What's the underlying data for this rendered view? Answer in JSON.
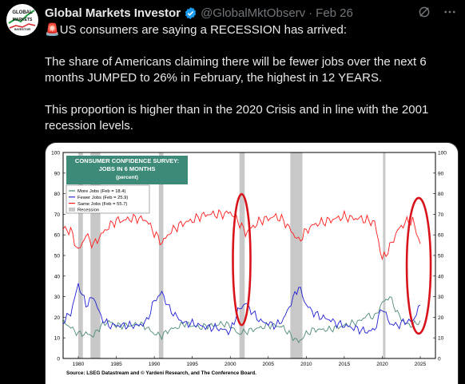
{
  "tweet": {
    "author_name": "Global Markets Investor",
    "handle": "@GlobalMktObserv",
    "date": "Feb 26",
    "avatar_text": [
      "GLOBAL",
      "MARKETS",
      "INVESTOR"
    ],
    "emoji": "🚨",
    "line1": "US consumers are saying a RECESSION has arrived:",
    "para2": "The share of Americans claiming there will be fewer jobs over the next 6 months JUMPED to 26% in February, the highest in 12 YEARS.",
    "para3": "This proportion is higher than in the 2020 Crisis and in line with the 2001 recession levels."
  },
  "icons": {
    "verified": "verified-badge-icon",
    "grok": "grok-icon",
    "more": "more-icon"
  },
  "chart_title": [
    "CONSUMER CONFIDENCE SURVEY:",
    "JOBS IN 6 MONTHS",
    "(percent)"
  ],
  "legend": [
    "More Jobs (Feb = 18.4)",
    "Fewer Jobs (Feb = 25.9)",
    "Same Jobs (Feb = 55.7)",
    "Recession"
  ],
  "source": "Source: LSEG Datastream and © Yardeni Research, and The Conference Board.",
  "colors": {
    "more": "#4e8b78",
    "fewer": "#1f1fd6",
    "same": "#ff1a1a",
    "recession": "#c8c8c8",
    "title_bg": "#3d8a78",
    "circle": "#d8141a"
  },
  "chart_data": {
    "type": "line",
    "title": "CONSUMER CONFIDENCE SURVEY: JOBS IN 6 MONTHS (percent)",
    "x_ticks": [
      "1980",
      "1985",
      "1990",
      "1995",
      "2000",
      "2005",
      "2010",
      "2015",
      "2020",
      "2025"
    ],
    "y_ticks": [
      "0",
      "10",
      "20",
      "30",
      "40",
      "50",
      "60",
      "70",
      "80",
      "90",
      "100"
    ],
    "ylim": [
      0,
      100
    ],
    "xlim": [
      1978,
      2027
    ],
    "recessions": [
      [
        1980.0,
        1980.6
      ],
      [
        1981.6,
        1982.9
      ],
      [
        1990.6,
        1991.2
      ],
      [
        2001.2,
        2001.9
      ],
      [
        2007.9,
        2009.5
      ],
      [
        2020.1,
        2020.4
      ]
    ],
    "series": [
      {
        "name": "More Jobs",
        "x": [
          1978,
          1979,
          1980,
          1981,
          1982,
          1983,
          1984,
          1985,
          1986,
          1987,
          1988,
          1989,
          1990,
          1991,
          1992,
          1993,
          1994,
          1995,
          1996,
          1997,
          1998,
          1999,
          2000,
          2001,
          2002,
          2003,
          2004,
          2005,
          2006,
          2007,
          2008,
          2009,
          2010,
          2011,
          2012,
          2013,
          2014,
          2015,
          2016,
          2017,
          2018,
          2019,
          2020,
          2021,
          2022,
          2023,
          2024,
          2025
        ],
        "values": [
          18,
          15,
          12,
          12,
          11,
          16,
          18,
          16,
          16,
          16,
          17,
          15,
          12,
          11,
          14,
          15,
          17,
          16,
          15,
          16,
          16,
          17,
          16,
          12,
          13,
          14,
          15,
          16,
          16,
          15,
          11,
          8,
          12,
          14,
          14,
          14,
          15,
          16,
          17,
          18,
          21,
          20,
          27,
          30,
          22,
          17,
          16,
          18.4
        ]
      },
      {
        "name": "Fewer Jobs",
        "x": [
          1978,
          1979,
          1980,
          1981,
          1982,
          1983,
          1984,
          1985,
          1986,
          1987,
          1988,
          1989,
          1990,
          1991,
          1992,
          1993,
          1994,
          1995,
          1996,
          1997,
          1998,
          1999,
          2000,
          2001,
          2002,
          2003,
          2004,
          2005,
          2006,
          2007,
          2008,
          2009,
          2010,
          2011,
          2012,
          2013,
          2014,
          2015,
          2016,
          2017,
          2018,
          2019,
          2020,
          2021,
          2022,
          2023,
          2024,
          2025
        ],
        "values": [
          18,
          22,
          36,
          26,
          30,
          20,
          16,
          16,
          16,
          16,
          16,
          18,
          28,
          32,
          24,
          20,
          17,
          17,
          16,
          15,
          15,
          14,
          13,
          23,
          27,
          22,
          18,
          17,
          16,
          19,
          27,
          35,
          26,
          22,
          20,
          19,
          17,
          16,
          15,
          14,
          13,
          14,
          25,
          17,
          16,
          18,
          18,
          25.9
        ]
      },
      {
        "name": "Same Jobs",
        "x": [
          1978,
          1979,
          1980,
          1981,
          1982,
          1983,
          1984,
          1985,
          1986,
          1987,
          1988,
          1989,
          1990,
          1991,
          1992,
          1993,
          1994,
          1995,
          1996,
          1997,
          1998,
          1999,
          2000,
          2001,
          2002,
          2003,
          2004,
          2005,
          2006,
          2007,
          2008,
          2009,
          2010,
          2011,
          2012,
          2013,
          2014,
          2015,
          2016,
          2017,
          2018,
          2019,
          2020,
          2021,
          2022,
          2023,
          2024,
          2025
        ],
        "values": [
          63,
          62,
          52,
          60,
          55,
          60,
          64,
          67,
          67,
          68,
          68,
          67,
          61,
          56,
          61,
          64,
          66,
          67,
          69,
          70,
          70,
          70,
          71,
          67,
          61,
          64,
          67,
          68,
          69,
          67,
          62,
          57,
          62,
          65,
          66,
          67,
          68,
          69,
          68,
          68,
          67,
          66,
          48,
          54,
          62,
          66,
          67,
          55.7
        ]
      }
    ]
  }
}
